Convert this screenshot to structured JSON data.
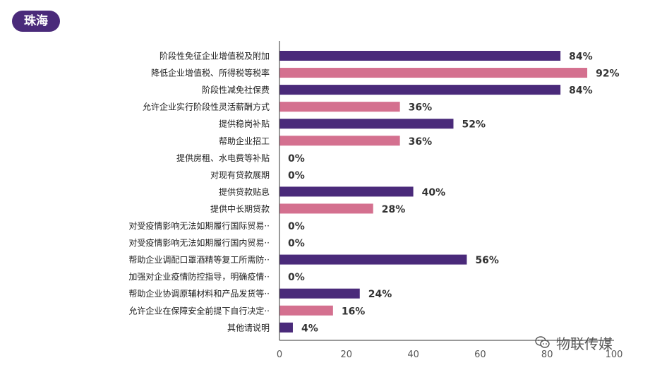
{
  "badge": {
    "label": "珠海"
  },
  "colors": {
    "purple": "#4a2a7a",
    "pink": "#d4708f",
    "axis": "#333333"
  },
  "watermark": {
    "icon": "wechat-icon",
    "text": "物联传媒"
  },
  "chart_data": {
    "type": "bar",
    "orientation": "horizontal",
    "categories": [
      "阶段性免征企业增值税及附加",
      "降低企业增值税、所得税等税率",
      "阶段性减免社保费",
      "允许企业实行阶段性灵活薪酬方式",
      "提供稳岗补贴",
      "帮助企业招工",
      "提供房租、水电费等补贴",
      "对现有贷款展期",
      "提供贷款贴息",
      "提供中长期贷款",
      "对受疫情影响无法如期履行国际贸易··",
      "对受疫情影响无法如期履行国内贸易··",
      "帮助企业调配口罩酒精等复工所需防··",
      "加强对企业疫情防控指导，明确疫情··",
      "帮助企业协调原辅材料和产品发货等··",
      "允许企业在保障安全前提下自行决定··",
      "其他请说明"
    ],
    "values": [
      84,
      92,
      84,
      36,
      52,
      36,
      0,
      0,
      40,
      28,
      0,
      0,
      56,
      0,
      24,
      16,
      4
    ],
    "value_labels": [
      "84%",
      "92%",
      "84%",
      "36%",
      "52%",
      "36%",
      "0%",
      "0%",
      "40%",
      "28%",
      "0%",
      "0%",
      "56%",
      "0%",
      "24%",
      "16%",
      "4%"
    ],
    "bar_colors": [
      "purple",
      "pink",
      "purple",
      "pink",
      "purple",
      "pink",
      "purple",
      "pink",
      "purple",
      "pink",
      "purple",
      "pink",
      "purple",
      "pink",
      "purple",
      "pink",
      "purple"
    ],
    "xlim": [
      0,
      100
    ],
    "xticks": [
      "0",
      "20",
      "40",
      "60",
      "80",
      "100"
    ],
    "grid": false,
    "legend": "none"
  }
}
